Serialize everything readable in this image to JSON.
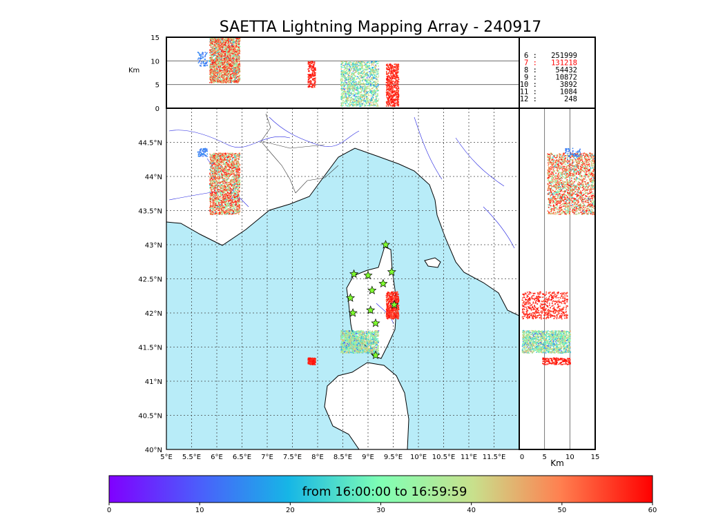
{
  "chart_data": {
    "type": "scatter",
    "title": "SAETTA Lightning Mapping Array - 240917",
    "map": {
      "lon_range": [
        5,
        12
      ],
      "lat_range": [
        40,
        45
      ],
      "lon_ticks": [
        "5°E",
        "5.5°E",
        "6°E",
        "6.5°E",
        "7°E",
        "7.5°E",
        "8°E",
        "8.5°E",
        "9°E",
        "9.5°E",
        "10°E",
        "10.5°E",
        "11°E",
        "11.5°E"
      ],
      "lon_values": [
        5,
        5.5,
        6,
        6.5,
        7,
        7.5,
        8,
        8.5,
        9,
        9.5,
        10,
        10.5,
        11,
        11.5
      ],
      "lat_ticks": [
        "40°N",
        "40.5°N",
        "41°N",
        "41.5°N",
        "42°N",
        "42.5°N",
        "43°N",
        "43.5°N",
        "44°N",
        "44.5°N"
      ],
      "lat_values": [
        40,
        40.5,
        41,
        41.5,
        42,
        42.5,
        43,
        43.5,
        44,
        44.5
      ],
      "sea_color": "#b8ecf8",
      "grid": "dotted",
      "stations": [
        [
          9.35,
          43.0
        ],
        [
          8.72,
          42.57
        ],
        [
          9.0,
          42.55
        ],
        [
          9.47,
          42.6
        ],
        [
          9.3,
          42.43
        ],
        [
          8.65,
          42.22
        ],
        [
          9.08,
          42.33
        ],
        [
          8.7,
          42.0
        ],
        [
          9.05,
          42.04
        ],
        [
          9.52,
          42.12
        ],
        [
          9.15,
          41.85
        ],
        [
          9.15,
          41.38
        ]
      ]
    },
    "altitude_axis": {
      "label": "Km",
      "range": [
        0,
        15
      ],
      "ticks": [
        "0",
        "5",
        "10",
        "15"
      ],
      "tick_values": [
        0,
        5,
        10,
        15
      ],
      "gridlines": [
        5,
        10
      ]
    },
    "station_counts": [
      {
        "stations": "6",
        "count": "251999",
        "color": "#000000"
      },
      {
        "stations": "7",
        "count": "131218",
        "color": "#ff0000"
      },
      {
        "stations": "8",
        "count": "54432",
        "color": "#000000"
      },
      {
        "stations": "9",
        "count": "10872",
        "color": "#000000"
      },
      {
        "stations": "10",
        "count": "3892",
        "color": "#000000"
      },
      {
        "stations": "11",
        "count": "1084",
        "color": "#000000"
      },
      {
        "stations": "12",
        "count": "248",
        "color": "#000000"
      }
    ],
    "colorbar": {
      "label": "from 16:00:00 to 16:59:59",
      "range": [
        0,
        60
      ],
      "ticks": [
        "0",
        "10",
        "20",
        "30",
        "40",
        "50",
        "60"
      ],
      "tick_values": [
        0,
        10,
        20,
        30,
        40,
        50,
        60
      ],
      "colormap": "rainbow"
    },
    "clusters": [
      {
        "lon": [
          5.85,
          6.45
        ],
        "lat": [
          43.45,
          44.35
        ],
        "alt": [
          5.5,
          15
        ],
        "time": [
          10,
          60
        ],
        "density": 2200
      },
      {
        "lon": [
          5.6,
          5.8
        ],
        "lat": [
          44.3,
          44.42
        ],
        "alt": [
          9,
          12
        ],
        "time": [
          10,
          15
        ],
        "density": 60
      },
      {
        "lon": [
          7.8,
          7.95
        ],
        "lat": [
          41.25,
          41.35
        ],
        "alt": [
          4.5,
          10
        ],
        "time": [
          50,
          60
        ],
        "density": 200
      },
      {
        "lon": [
          8.45,
          9.2
        ],
        "lat": [
          41.42,
          41.75
        ],
        "alt": [
          0.5,
          10
        ],
        "time": [
          2,
          45
        ],
        "density": 1400
      },
      {
        "lon": [
          9.35,
          9.6
        ],
        "lat": [
          41.92,
          42.32
        ],
        "alt": [
          0.5,
          9.5
        ],
        "time": [
          48,
          60
        ],
        "density": 600
      }
    ]
  }
}
